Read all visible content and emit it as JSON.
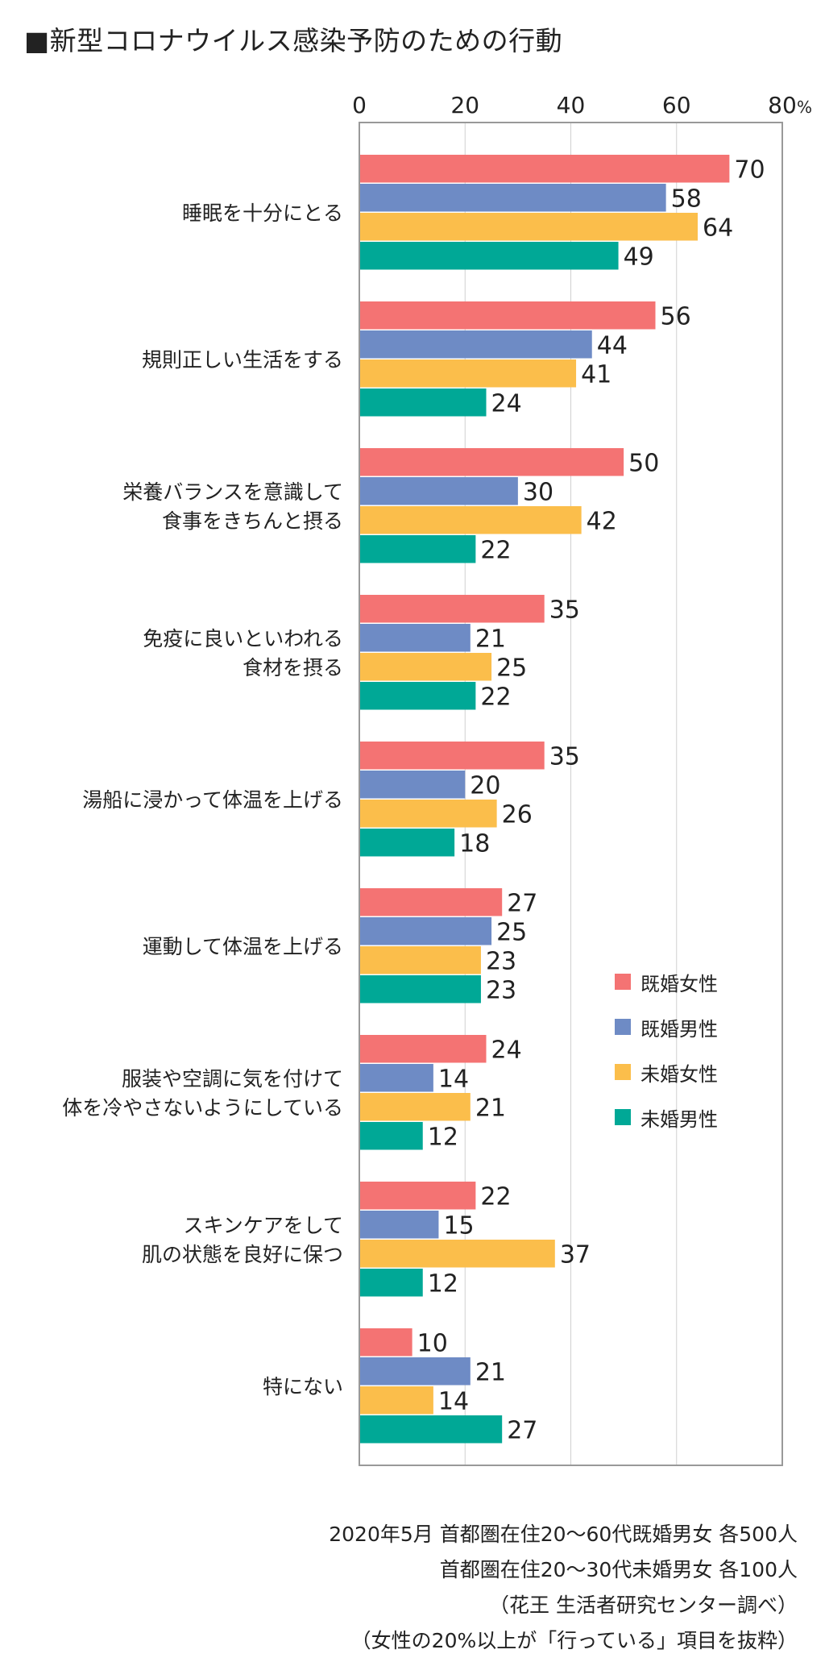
{
  "title": "■新型コロナウイルス感染予防のための行動",
  "colors": {
    "series": [
      "#F47373",
      "#6E8BC5",
      "#FBBE4B",
      "#00A896"
    ],
    "axis": "#999999",
    "grid": "#d0d0d0",
    "text": "#222222"
  },
  "chart_data": {
    "type": "bar",
    "orientation": "horizontal",
    "xlim": [
      0,
      80
    ],
    "ticks": [
      "0",
      "20",
      "40",
      "60",
      "80"
    ],
    "tick_values": [
      0,
      20,
      40,
      60,
      80
    ],
    "unit": "%",
    "grid": true,
    "legend_position": "right",
    "categories": [
      [
        "睡眠を十分にとる"
      ],
      [
        "規則正しい生活をする"
      ],
      [
        "栄養バランスを意識して",
        "食事をきちんと摂る"
      ],
      [
        "免疫に良いといわれる",
        "食材を摂る"
      ],
      [
        "湯船に浸かって体温を上げる"
      ],
      [
        "運動して体温を上げる"
      ],
      [
        "服装や空調に気を付けて",
        "体を冷やさないようにしている"
      ],
      [
        "スキンケアをして",
        "肌の状態を良好に保つ"
      ],
      [
        "特にない"
      ]
    ],
    "series": [
      {
        "name": "既婚女性",
        "values": [
          70,
          56,
          50,
          35,
          35,
          27,
          24,
          22,
          10
        ]
      },
      {
        "name": "既婚男性",
        "values": [
          58,
          44,
          30,
          21,
          20,
          25,
          14,
          15,
          21
        ]
      },
      {
        "name": "未婚女性",
        "values": [
          64,
          41,
          42,
          25,
          26,
          23,
          21,
          37,
          14
        ]
      },
      {
        "name": "未婚男性",
        "values": [
          49,
          24,
          22,
          22,
          18,
          23,
          12,
          12,
          27
        ]
      }
    ]
  },
  "footnote": [
    "2020年5月 首都圏在住20〜60代既婚男女 各500人",
    "首都圏在住20〜30代未婚男女 各100人",
    "（花王 生活者研究センター調べ）",
    "（女性の20%以上が「行っている」項目を抜粋）"
  ]
}
